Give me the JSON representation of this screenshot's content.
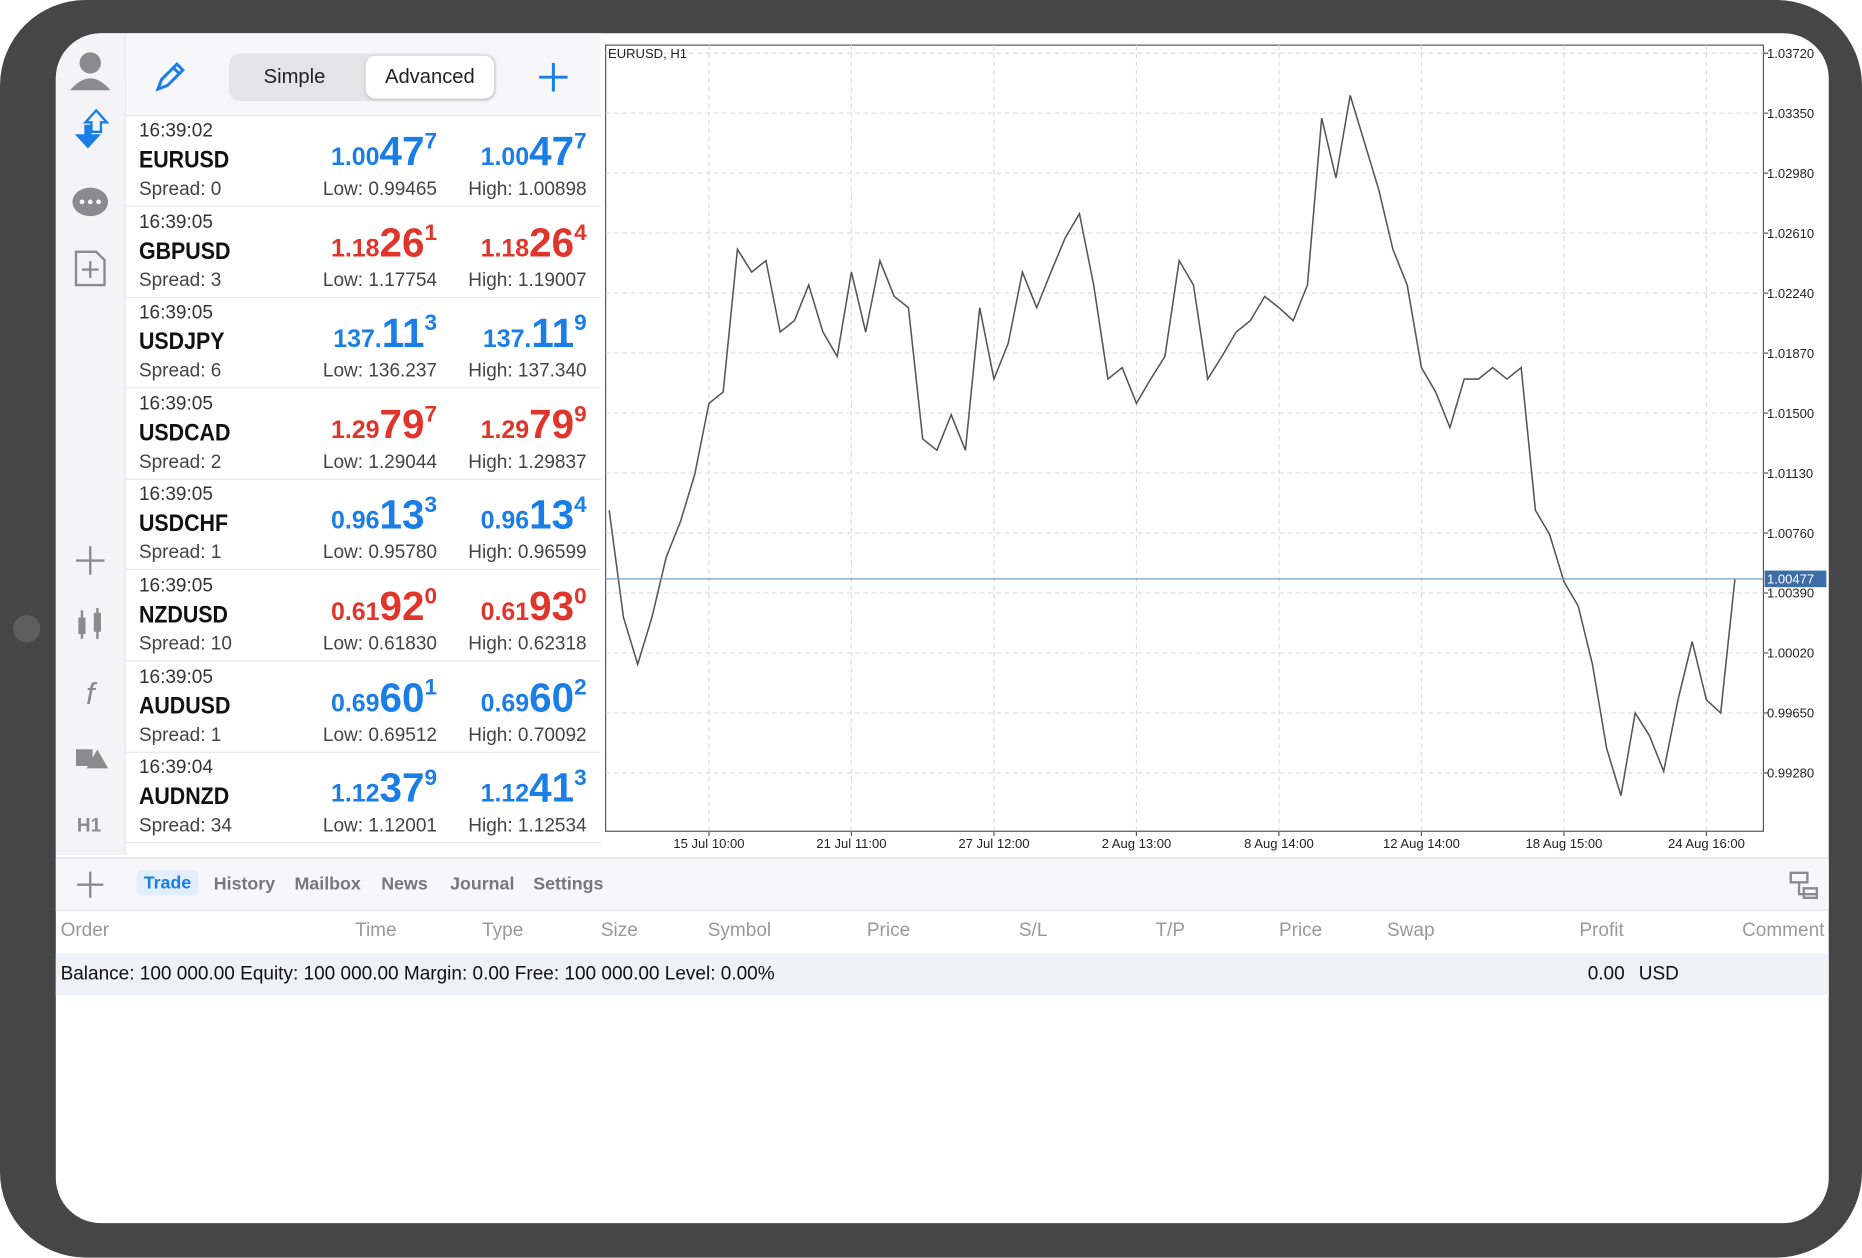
{
  "toolbar": {
    "modes": [
      "Simple",
      "Advanced"
    ]
  },
  "sidebar": {
    "timeframe": "H1"
  },
  "quotes": [
    {
      "time": "16:39:02",
      "symbol": "EURUSD",
      "spread": "Spread: 0",
      "dir": "up",
      "bid": [
        "1.00",
        "47",
        "7"
      ],
      "ask": [
        "1.00",
        "47",
        "7"
      ],
      "low": "Low: 0.99465",
      "high": "High: 1.00898"
    },
    {
      "time": "16:39:05",
      "symbol": "GBPUSD",
      "spread": "Spread: 3",
      "dir": "down",
      "bid": [
        "1.18",
        "26",
        "1"
      ],
      "ask": [
        "1.18",
        "26",
        "4"
      ],
      "low": "Low: 1.17754",
      "high": "High: 1.19007"
    },
    {
      "time": "16:39:05",
      "symbol": "USDJPY",
      "spread": "Spread: 6",
      "dir": "up",
      "bid": [
        "137.",
        "11",
        "3"
      ],
      "ask": [
        "137.",
        "11",
        "9"
      ],
      "low": "Low: 136.237",
      "high": "High: 137.340"
    },
    {
      "time": "16:39:05",
      "symbol": "USDCAD",
      "spread": "Spread: 2",
      "dir": "down",
      "bid": [
        "1.29",
        "79",
        "7"
      ],
      "ask": [
        "1.29",
        "79",
        "9"
      ],
      "low": "Low: 1.29044",
      "high": "High: 1.29837"
    },
    {
      "time": "16:39:05",
      "symbol": "USDCHF",
      "spread": "Spread: 1",
      "dir": "up",
      "bid": [
        "0.96",
        "13",
        "3"
      ],
      "ask": [
        "0.96",
        "13",
        "4"
      ],
      "low": "Low: 0.95780",
      "high": "High: 0.96599"
    },
    {
      "time": "16:39:05",
      "symbol": "NZDUSD",
      "spread": "Spread: 10",
      "dir": "down",
      "bid": [
        "0.61",
        "92",
        "0"
      ],
      "ask": [
        "0.61",
        "93",
        "0"
      ],
      "low": "Low: 0.61830",
      "high": "High: 0.62318"
    },
    {
      "time": "16:39:05",
      "symbol": "AUDUSD",
      "spread": "Spread: 1",
      "dir": "up",
      "bid": [
        "0.69",
        "60",
        "1"
      ],
      "ask": [
        "0.69",
        "60",
        "2"
      ],
      "low": "Low: 0.69512",
      "high": "High: 0.70092"
    },
    {
      "time": "16:39:04",
      "symbol": "AUDNZD",
      "spread": "Spread: 34",
      "dir": "up",
      "bid": [
        "1.12",
        "37",
        "9"
      ],
      "ask": [
        "1.12",
        "41",
        "3"
      ],
      "low": "Low: 1.12001",
      "high": "High: 1.12534"
    }
  ],
  "colors": {
    "up": "#1a7ee6",
    "down": "#e0352b"
  },
  "chart_data": {
    "type": "line",
    "title": "EURUSD, H1",
    "color": "#555555",
    "values": [
      1.009,
      1.0024,
      0.9995,
      1.0024,
      1.0061,
      1.0083,
      1.0112,
      1.0156,
      1.0163,
      1.0251,
      1.0237,
      1.0244,
      1.02,
      1.0207,
      1.0229,
      1.02,
      1.0185,
      1.0237,
      1.02,
      1.0244,
      1.0222,
      1.0215,
      1.0134,
      1.0127,
      1.0149,
      1.0127,
      1.0215,
      1.0171,
      1.0193,
      1.0237,
      1.0215,
      1.0237,
      1.0258,
      1.0273,
      1.0229,
      1.0171,
      1.0178,
      1.0156,
      1.0171,
      1.0185,
      1.0244,
      1.0229,
      1.0171,
      1.0185,
      1.02,
      1.0207,
      1.0222,
      1.0215,
      1.0207,
      1.0229,
      1.0332,
      1.0295,
      1.0346,
      1.0317,
      1.0288,
      1.0251,
      1.0229,
      1.0178,
      1.0163,
      1.0141,
      1.0171,
      1.0171,
      1.0178,
      1.0171,
      1.0178,
      1.009,
      1.0075,
      1.0046,
      1.0031,
      0.9995,
      0.9943,
      0.9914,
      0.9965,
      0.9951,
      0.9929,
      0.9973,
      1.0009,
      0.9973,
      0.9965,
      1.00477
    ],
    "xlim": [
      -0.25,
      81
    ],
    "xticks": [
      {
        "value": 7,
        "label": "15 Jul 10:00"
      },
      {
        "value": 17,
        "label": "21 Jul 11:00"
      },
      {
        "value": 27,
        "label": "27 Jul 12:00"
      },
      {
        "value": 37,
        "label": "2 Aug 13:00"
      },
      {
        "value": 47,
        "label": "8 Aug 14:00"
      },
      {
        "value": 57,
        "label": "12 Aug 14:00"
      },
      {
        "value": 67,
        "label": "18 Aug 15:00"
      },
      {
        "value": 77,
        "label": "24 Aug 16:00"
      }
    ],
    "ylim": [
      0.9892,
      1.0377
    ],
    "yticks": [
      {
        "value": 1.0372,
        "label": "1.03720"
      },
      {
        "value": 1.0335,
        "label": "1.03350"
      },
      {
        "value": 1.0298,
        "label": "1.02980"
      },
      {
        "value": 1.0261,
        "label": "1.02610"
      },
      {
        "value": 1.0224,
        "label": "1.02240"
      },
      {
        "value": 1.0187,
        "label": "1.01870"
      },
      {
        "value": 1.015,
        "label": "1.01500"
      },
      {
        "value": 1.0113,
        "label": "1.01130"
      },
      {
        "value": 1.0076,
        "label": "1.00760"
      },
      {
        "value": 1.0039,
        "label": "1.00390"
      },
      {
        "value": 1.0002,
        "label": "1.00020"
      },
      {
        "value": 0.9965,
        "label": "0.99650"
      },
      {
        "value": 0.9928,
        "label": "0.99280"
      }
    ],
    "price": 1.00477,
    "grid": true
  },
  "terminal": {
    "tabs": [
      "Trade",
      "History",
      "Mailbox",
      "News",
      "Journal",
      "Settings"
    ],
    "columns": [
      "Order",
      "Time",
      "Type",
      "Size",
      "Symbol",
      "Price",
      "S/L",
      "T/P",
      "Price",
      "Swap",
      "Profit",
      "Comment"
    ],
    "summary": "Balance: 100 000.00 Equity: 100 000.00 Margin: 0.00 Free: 100 000.00 Level: 0.00%",
    "profit": "0.00",
    "currency": "USD"
  }
}
